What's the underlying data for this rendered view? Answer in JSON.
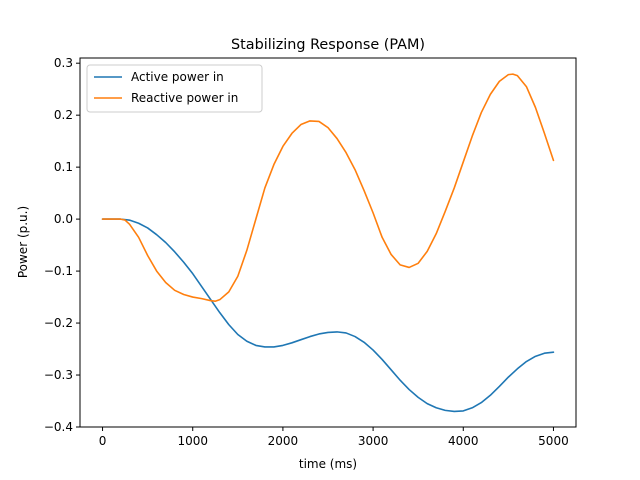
{
  "chart_data": {
    "type": "line",
    "title": "Stabilizing Response (PAM)",
    "xlabel": "time (ms)",
    "ylabel": "Power (p.u.)",
    "xlim": [
      -250,
      5250
    ],
    "ylim": [
      -0.4,
      0.31
    ],
    "xticks": [
      0,
      1000,
      2000,
      3000,
      4000,
      5000
    ],
    "yticks": [
      -0.4,
      -0.3,
      -0.2,
      -0.1,
      0.0,
      0.1,
      0.2,
      0.3
    ],
    "xtick_labels": [
      "0",
      "1000",
      "2000",
      "3000",
      "4000",
      "5000"
    ],
    "ytick_labels": [
      "−0.4",
      "−0.3",
      "−0.2",
      "−0.1",
      "0.0",
      "0.1",
      "0.2",
      "0.3"
    ],
    "grid": false,
    "legend_position": "upper-left",
    "series": [
      {
        "name": "Active power in",
        "color": "#1f77b4",
        "points": [
          [
            0,
            0.0
          ],
          [
            200,
            0.0
          ],
          [
            300,
            -0.002
          ],
          [
            400,
            -0.008
          ],
          [
            500,
            -0.017
          ],
          [
            600,
            -0.03
          ],
          [
            700,
            -0.045
          ],
          [
            800,
            -0.063
          ],
          [
            900,
            -0.083
          ],
          [
            1000,
            -0.105
          ],
          [
            1100,
            -0.13
          ],
          [
            1200,
            -0.155
          ],
          [
            1300,
            -0.18
          ],
          [
            1400,
            -0.203
          ],
          [
            1500,
            -0.222
          ],
          [
            1600,
            -0.235
          ],
          [
            1700,
            -0.243
          ],
          [
            1800,
            -0.246
          ],
          [
            1900,
            -0.246
          ],
          [
            2000,
            -0.243
          ],
          [
            2100,
            -0.238
          ],
          [
            2200,
            -0.232
          ],
          [
            2300,
            -0.226
          ],
          [
            2400,
            -0.221
          ],
          [
            2500,
            -0.218
          ],
          [
            2600,
            -0.217
          ],
          [
            2700,
            -0.219
          ],
          [
            2800,
            -0.226
          ],
          [
            2900,
            -0.237
          ],
          [
            3000,
            -0.252
          ],
          [
            3100,
            -0.27
          ],
          [
            3200,
            -0.29
          ],
          [
            3300,
            -0.31
          ],
          [
            3400,
            -0.328
          ],
          [
            3500,
            -0.343
          ],
          [
            3600,
            -0.355
          ],
          [
            3700,
            -0.363
          ],
          [
            3800,
            -0.368
          ],
          [
            3900,
            -0.37
          ],
          [
            4000,
            -0.369
          ],
          [
            4100,
            -0.363
          ],
          [
            4200,
            -0.353
          ],
          [
            4300,
            -0.339
          ],
          [
            4400,
            -0.322
          ],
          [
            4500,
            -0.304
          ],
          [
            4600,
            -0.288
          ],
          [
            4700,
            -0.274
          ],
          [
            4800,
            -0.264
          ],
          [
            4900,
            -0.258
          ],
          [
            5000,
            -0.256
          ]
        ]
      },
      {
        "name": "Reactive power in",
        "color": "#ff7f0e",
        "points": [
          [
            0,
            0.0
          ],
          [
            200,
            0.0
          ],
          [
            250,
            -0.002
          ],
          [
            300,
            -0.01
          ],
          [
            400,
            -0.035
          ],
          [
            500,
            -0.07
          ],
          [
            600,
            -0.1
          ],
          [
            700,
            -0.122
          ],
          [
            800,
            -0.137
          ],
          [
            900,
            -0.145
          ],
          [
            1000,
            -0.15
          ],
          [
            1100,
            -0.153
          ],
          [
            1200,
            -0.157
          ],
          [
            1250,
            -0.158
          ],
          [
            1300,
            -0.155
          ],
          [
            1400,
            -0.14
          ],
          [
            1500,
            -0.11
          ],
          [
            1600,
            -0.06
          ],
          [
            1700,
            0.0
          ],
          [
            1800,
            0.06
          ],
          [
            1900,
            0.105
          ],
          [
            2000,
            0.14
          ],
          [
            2100,
            0.165
          ],
          [
            2200,
            0.182
          ],
          [
            2300,
            0.189
          ],
          [
            2400,
            0.188
          ],
          [
            2500,
            0.176
          ],
          [
            2600,
            0.155
          ],
          [
            2700,
            0.128
          ],
          [
            2800,
            0.095
          ],
          [
            2900,
            0.055
          ],
          [
            3000,
            0.012
          ],
          [
            3100,
            -0.035
          ],
          [
            3200,
            -0.068
          ],
          [
            3300,
            -0.088
          ],
          [
            3400,
            -0.093
          ],
          [
            3500,
            -0.085
          ],
          [
            3600,
            -0.062
          ],
          [
            3700,
            -0.028
          ],
          [
            3800,
            0.015
          ],
          [
            3900,
            0.06
          ],
          [
            4000,
            0.11
          ],
          [
            4100,
            0.16
          ],
          [
            4200,
            0.205
          ],
          [
            4300,
            0.24
          ],
          [
            4400,
            0.265
          ],
          [
            4500,
            0.278
          ],
          [
            4550,
            0.279
          ],
          [
            4600,
            0.276
          ],
          [
            4700,
            0.255
          ],
          [
            4800,
            0.215
          ],
          [
            4900,
            0.165
          ],
          [
            5000,
            0.113
          ]
        ]
      }
    ]
  }
}
